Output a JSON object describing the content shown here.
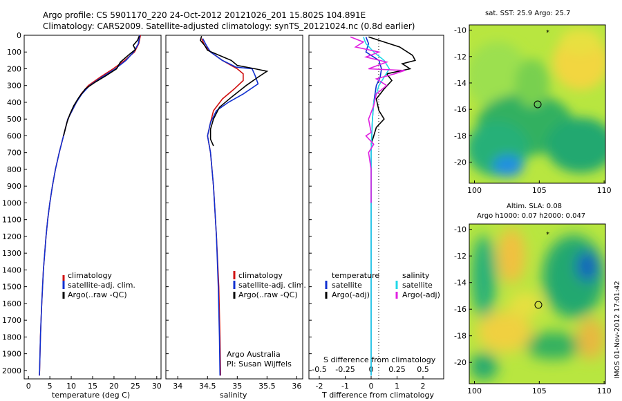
{
  "header": {
    "line1": "Argo profile: CS 5901170_220 24-Oct-2012 20121026_201 15.802S 104.891E",
    "line2": "Climatology: CARS2009. Satellite-adjusted climatology: synTS_20121024.nc (0.8d earlier)"
  },
  "colors": {
    "climatology": "#d01010",
    "satellite": "#1030d0",
    "argo": "#000000",
    "satellite_s": "#20d8e8",
    "argo_s": "#e020e0"
  },
  "legend_profile": {
    "items": [
      "climatology",
      "satellite-adj. clim.",
      "Argo(..raw -QC)"
    ]
  },
  "legend_diff": {
    "temperature_header": "temperature",
    "salinity_header": "salinity",
    "t_items": [
      "satellite",
      "Argo(-adj)"
    ],
    "s_items": [
      "satellite",
      "Argo(-adj)"
    ]
  },
  "notes": {
    "argo_australia": "Argo Australia",
    "pi": "PI: Susan Wijffels"
  },
  "maps": {
    "sst_title": "sat. SST: 25.9  Argo: 25.7",
    "sla_title1": "Altim. SLA: 0.08",
    "sla_title2": "Argo h1000: 0.07  h2000: 0.047",
    "lat_ticks": [
      "-10",
      "-12",
      "-14",
      "-16",
      "-18",
      "-20"
    ],
    "lon_ticks": [
      "100",
      "105",
      "110"
    ],
    "footer": "IMOS 01-Nov-2012 17:01:42"
  },
  "chart_data": [
    {
      "type": "line",
      "xlabel": "temperature (deg C)",
      "ylabel": "",
      "xlim": [
        -1,
        31
      ],
      "ylim": [
        2050,
        0
      ],
      "x_ticks": [
        "0",
        "5",
        "10",
        "15",
        "20",
        "25",
        "30"
      ],
      "y_ticks": [
        "0",
        "100",
        "200",
        "300",
        "400",
        "500",
        "600",
        "700",
        "800",
        "900",
        "1000",
        "1100",
        "1200",
        "1300",
        "1400",
        "1500",
        "1600",
        "1700",
        "1800",
        "1900",
        "2000"
      ],
      "series": [
        {
          "name": "climatology",
          "points": [
            [
              26.2,
              0
            ],
            [
              25.8,
              50
            ],
            [
              24.8,
              100
            ],
            [
              22.5,
              150
            ],
            [
              19.8,
              200
            ],
            [
              16.8,
              250
            ],
            [
              14,
              300
            ],
            [
              12.3,
              350
            ],
            [
              11.2,
              400
            ],
            [
              10.2,
              450
            ],
            [
              9.2,
              500
            ],
            [
              8.2,
              600
            ],
            [
              7.2,
              700
            ],
            [
              6.3,
              800
            ],
            [
              5.6,
              900
            ],
            [
              5,
              1000
            ],
            [
              4.5,
              1100
            ],
            [
              4.1,
              1200
            ],
            [
              3.8,
              1300
            ],
            [
              3.5,
              1400
            ],
            [
              3.3,
              1500
            ],
            [
              3.1,
              1600
            ],
            [
              2.95,
              1700
            ],
            [
              2.8,
              1800
            ],
            [
              2.7,
              1900
            ],
            [
              2.6,
              2000
            ],
            [
              2.55,
              2030
            ]
          ]
        },
        {
          "name": "satellite-adj. clim.",
          "points": [
            [
              26,
              0
            ],
            [
              25.7,
              50
            ],
            [
              24.6,
              100
            ],
            [
              22.8,
              150
            ],
            [
              20.3,
              200
            ],
            [
              17.2,
              250
            ],
            [
              14.3,
              300
            ],
            [
              12.5,
              350
            ],
            [
              11.2,
              400
            ],
            [
              10.2,
              450
            ],
            [
              9.2,
              500
            ],
            [
              8.2,
              600
            ],
            [
              7.2,
              700
            ],
            [
              6.3,
              800
            ],
            [
              5.6,
              900
            ],
            [
              5,
              1000
            ],
            [
              4.5,
              1100
            ],
            [
              4.1,
              1200
            ],
            [
              3.8,
              1300
            ],
            [
              3.5,
              1400
            ],
            [
              3.3,
              1500
            ],
            [
              3.1,
              1600
            ],
            [
              2.95,
              1700
            ],
            [
              2.8,
              1800
            ],
            [
              2.7,
              1900
            ],
            [
              2.6,
              2000
            ],
            [
              2.55,
              2030
            ]
          ]
        },
        {
          "name": "Argo(..raw -QC)",
          "points": [
            [
              25.9,
              5
            ],
            [
              25.5,
              30
            ],
            [
              24.5,
              60
            ],
            [
              25,
              85
            ],
            [
              23.3,
              120
            ],
            [
              21.5,
              160
            ],
            [
              20.6,
              200
            ],
            [
              18.2,
              240
            ],
            [
              15.6,
              280
            ],
            [
              13.3,
              320
            ],
            [
              11.8,
              370
            ],
            [
              10.6,
              420
            ],
            [
              9.7,
              470
            ],
            [
              9,
              520
            ],
            [
              8.2,
              600
            ]
          ]
        }
      ]
    },
    {
      "type": "line",
      "xlabel": "salinity",
      "xlim": [
        33.8,
        36.1
      ],
      "ylim": [
        2050,
        0
      ],
      "x_ticks": [
        "34",
        "34.5",
        "35",
        "35.5",
        "36"
      ],
      "series": [
        {
          "name": "climatology",
          "points": [
            [
              34.4,
              20
            ],
            [
              34.45,
              60
            ],
            [
              34.55,
              100
            ],
            [
              34.75,
              150
            ],
            [
              35,
              200
            ],
            [
              35.1,
              230
            ],
            [
              35.1,
              270
            ],
            [
              34.95,
              320
            ],
            [
              34.75,
              380
            ],
            [
              34.6,
              450
            ],
            [
              34.55,
              520
            ],
            [
              34.5,
              600
            ],
            [
              34.55,
              700
            ],
            [
              34.6,
              900
            ],
            [
              34.65,
              1200
            ],
            [
              34.69,
              1500
            ],
            [
              34.71,
              1800
            ],
            [
              34.72,
              2030
            ]
          ]
        },
        {
          "name": "satellite-adj. clim.",
          "points": [
            [
              34.42,
              20
            ],
            [
              34.48,
              60
            ],
            [
              34.55,
              100
            ],
            [
              34.75,
              150
            ],
            [
              34.98,
              190
            ],
            [
              35.25,
              200
            ],
            [
              35.3,
              240
            ],
            [
              35.35,
              290
            ],
            [
              35.1,
              350
            ],
            [
              34.85,
              400
            ],
            [
              34.65,
              450
            ],
            [
              34.55,
              520
            ],
            [
              34.5,
              600
            ],
            [
              34.55,
              700
            ],
            [
              34.6,
              900
            ],
            [
              34.65,
              1200
            ],
            [
              34.68,
              1500
            ],
            [
              34.7,
              1800
            ],
            [
              34.71,
              2030
            ]
          ]
        },
        {
          "name": "Argo(..raw -QC)",
          "points": [
            [
              34.4,
              5
            ],
            [
              34.38,
              30
            ],
            [
              34.45,
              60
            ],
            [
              34.5,
              90
            ],
            [
              34.7,
              120
            ],
            [
              34.9,
              150
            ],
            [
              35,
              180
            ],
            [
              35.3,
              200
            ],
            [
              35.5,
              215
            ],
            [
              35.35,
              250
            ],
            [
              35.15,
              300
            ],
            [
              34.9,
              370
            ],
            [
              34.7,
              430
            ],
            [
              34.6,
              500
            ],
            [
              34.55,
              560
            ],
            [
              34.55,
              620
            ],
            [
              34.6,
              660
            ]
          ]
        }
      ]
    },
    {
      "type": "line",
      "xlabel": "T difference from climatology",
      "x_ticks": [
        "-2",
        "-1",
        "0",
        "1",
        "2"
      ],
      "x_ticks_top": [
        "-0.5",
        "-0.25",
        "0",
        "0.25",
        "0.5"
      ],
      "xlabel_top": "S difference from climatology",
      "xlim": [
        -2.4,
        2.8
      ],
      "ylim": [
        2050,
        0
      ],
      "series": [
        {
          "name": "temperature satellite",
          "points": [
            [
              -0.2,
              10
            ],
            [
              -0.1,
              50
            ],
            [
              -0.2,
              100
            ],
            [
              0.3,
              150
            ],
            [
              0.4,
              200
            ],
            [
              0.35,
              250
            ],
            [
              0.2,
              300
            ],
            [
              0.1,
              400
            ],
            [
              0.05,
              500
            ],
            [
              0,
              700
            ],
            [
              0,
              1000
            ],
            [
              0,
              1500
            ],
            [
              0,
              2030
            ]
          ]
        },
        {
          "name": "temperature Argo(-adj)",
          "points": [
            [
              -0.1,
              10
            ],
            [
              0.5,
              40
            ],
            [
              1.1,
              70
            ],
            [
              1.6,
              120
            ],
            [
              1.7,
              150
            ],
            [
              1.2,
              170
            ],
            [
              1.5,
              200
            ],
            [
              0.6,
              230
            ],
            [
              0.8,
              270
            ],
            [
              0.5,
              320
            ],
            [
              0.2,
              380
            ],
            [
              0.3,
              450
            ],
            [
              0.5,
              500
            ],
            [
              0.2,
              550
            ],
            [
              0.1,
              600
            ],
            [
              0,
              650
            ]
          ]
        },
        {
          "name": "salinity satellite",
          "points": [
            [
              -0.3,
              10
            ],
            [
              -0.2,
              50
            ],
            [
              0.1,
              100
            ],
            [
              0.5,
              150
            ],
            [
              0.7,
              200
            ],
            [
              0.5,
              250
            ],
            [
              0.3,
              300
            ],
            [
              0.1,
              400
            ],
            [
              0.05,
              500
            ],
            [
              0,
              700
            ],
            [
              0,
              1000
            ],
            [
              0,
              1500
            ],
            [
              0,
              2030
            ]
          ]
        },
        {
          "name": "salinity Argo(-adj)",
          "points": [
            [
              -0.8,
              10
            ],
            [
              -0.3,
              40
            ],
            [
              -0.6,
              70
            ],
            [
              0.3,
              100
            ],
            [
              -0.2,
              130
            ],
            [
              0.6,
              160
            ],
            [
              -0.1,
              200
            ],
            [
              1.3,
              210
            ],
            [
              0.9,
              230
            ],
            [
              0.2,
              260
            ],
            [
              0.6,
              300
            ],
            [
              0.2,
              350
            ],
            [
              0.1,
              420
            ],
            [
              -0.1,
              500
            ],
            [
              0,
              580
            ],
            [
              -0.2,
              600
            ],
            [
              0.1,
              650
            ],
            [
              -0.1,
              700
            ],
            [
              0,
              800
            ],
            [
              0,
              1000
            ]
          ]
        }
      ]
    }
  ]
}
